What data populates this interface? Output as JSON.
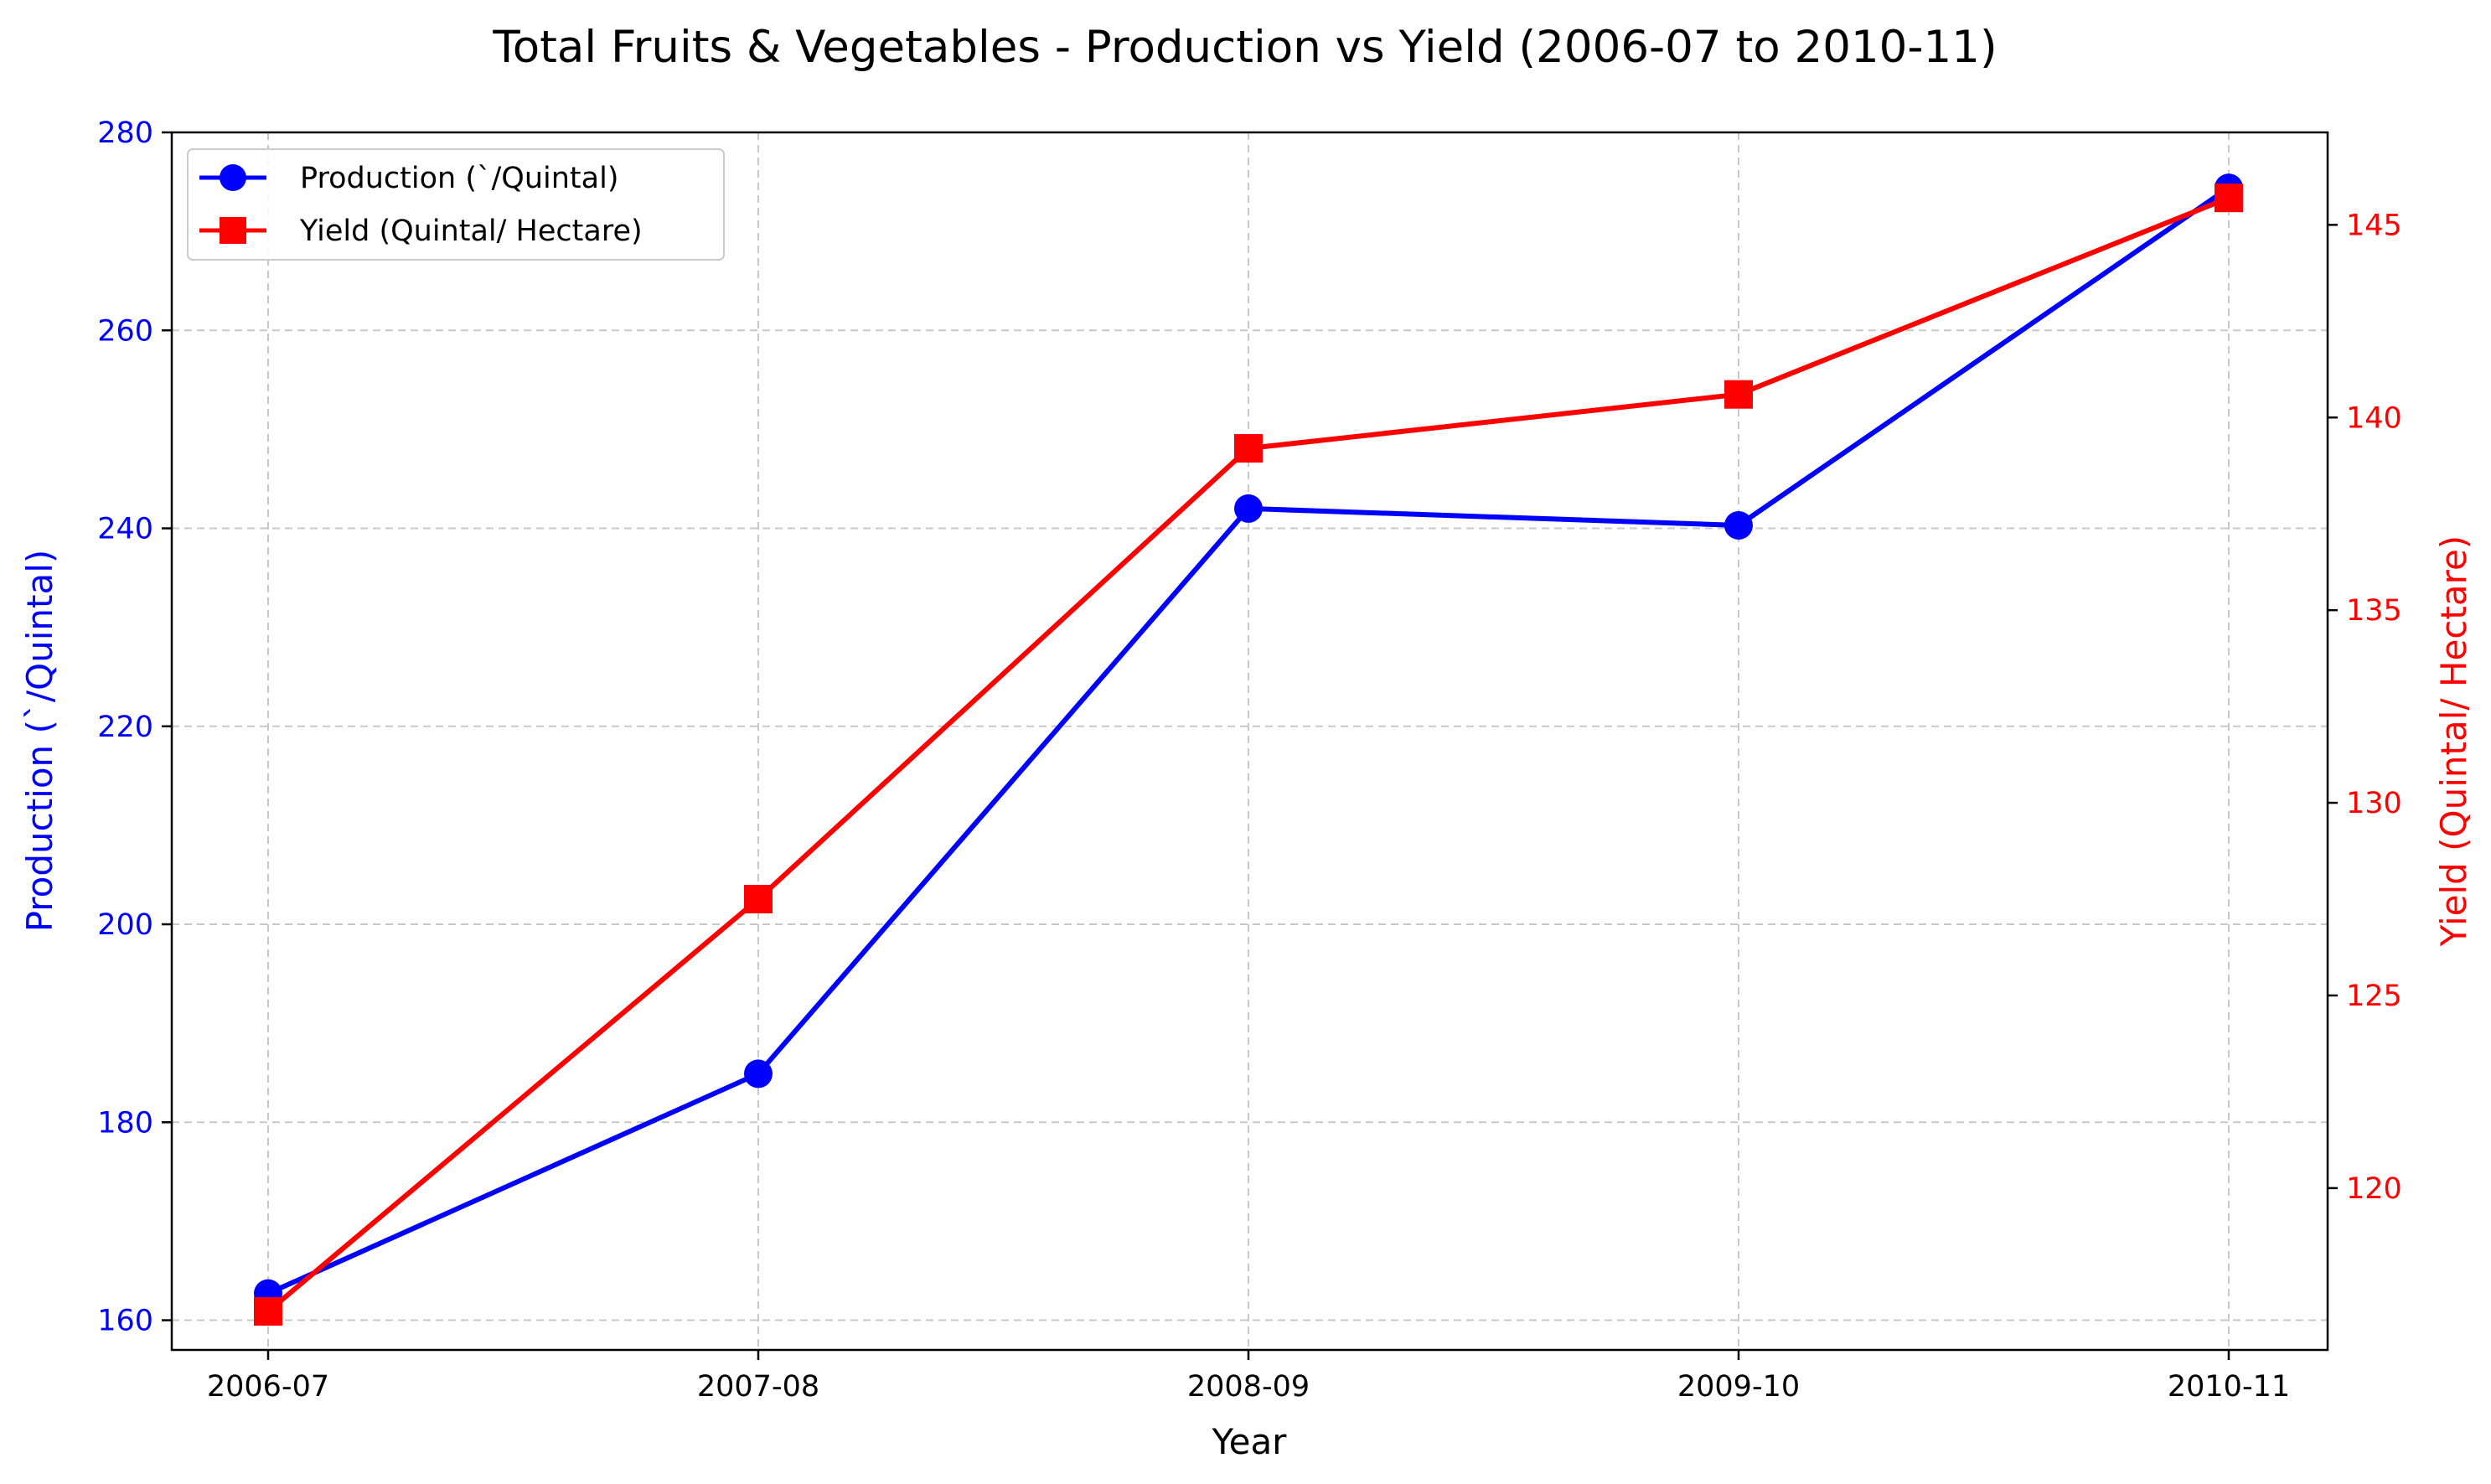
{
  "chart_data": {
    "type": "line",
    "title": "Total Fruits & Vegetables - Production vs Yield (2006-07 to 2010-11)",
    "xlabel": "Year",
    "ylabel_left": "Production (`/Quintal)",
    "ylabel_right": "Yield (Quintal/ Hectare)",
    "categories": [
      "2006-07",
      "2007-08",
      "2008-09",
      "2009-10",
      "2010-11"
    ],
    "ylim_left": [
      157,
      280
    ],
    "ylim_right": [
      115.8,
      147.4
    ],
    "yticks_left": [
      160,
      180,
      200,
      220,
      240,
      260,
      280
    ],
    "yticks_right": [
      120,
      125,
      130,
      135,
      140,
      145
    ],
    "grid": true,
    "legend_position": "top-left",
    "series": [
      {
        "name": "Production (`/Quintal)",
        "axis": "left",
        "color": "#0000ff",
        "marker": "circle",
        "values": [
          162.7,
          184.9,
          242.0,
          240.3,
          274.4
        ]
      },
      {
        "name": "Yield (Quintal/ Hectare)",
        "axis": "right",
        "color": "#ff0000",
        "marker": "square",
        "values": [
          116.8,
          127.5,
          139.2,
          140.6,
          145.7
        ]
      }
    ]
  }
}
